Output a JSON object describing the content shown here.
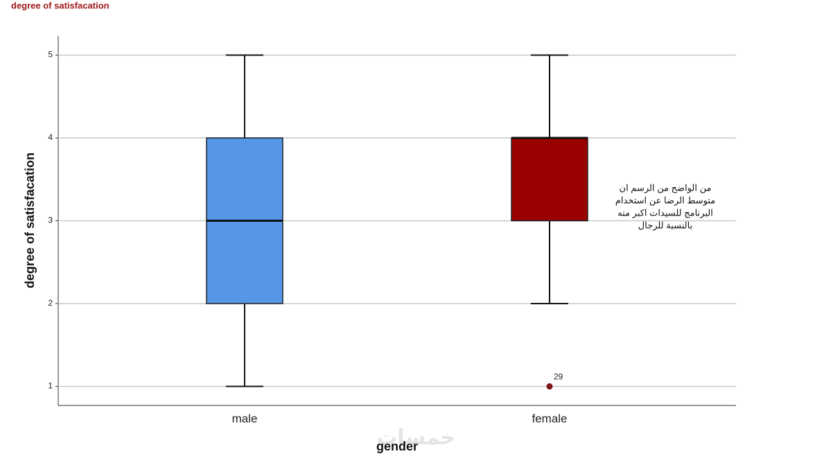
{
  "chart_data": {
    "type": "box",
    "title": "degree of satisfacation",
    "y_label": "degree of satisfacation",
    "x_label": "gender",
    "categories": [
      "male",
      "female"
    ],
    "series": [
      {
        "name": "male",
        "color": "#5596e6",
        "min": 1,
        "q1": 2,
        "median": 3,
        "q3": 4,
        "max": 5,
        "outliers": []
      },
      {
        "name": "female",
        "color": "#990000",
        "min": 2,
        "q1": 3,
        "median": 4,
        "q3": 4,
        "max": 5,
        "outliers": [
          {
            "value": 1,
            "label": "29",
            "color": "#7a1414"
          }
        ]
      }
    ],
    "ylim": [
      0.77,
      5.23
    ],
    "yticks": [
      1,
      2,
      3,
      4,
      5
    ],
    "grid": true,
    "annotation": [
      "من الواضح من الرسم ان",
      "متوسط الرضا عن استخدام",
      "البرنامج للسيدات اكبر منه",
      "بالنسبة للرجال"
    ],
    "watermark": "خمسات"
  }
}
